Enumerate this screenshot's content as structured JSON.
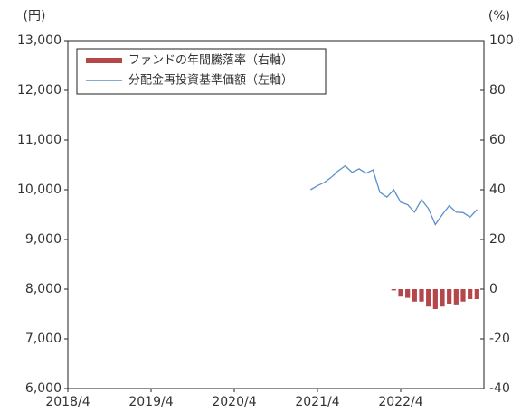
{
  "chart_data": {
    "type": "combo",
    "y_unit": "(円)",
    "y2_unit": "(%)",
    "x": [
      "2021/3",
      "2021/4",
      "2021/5",
      "2021/6",
      "2021/7",
      "2021/8",
      "2021/9",
      "2021/10",
      "2021/11",
      "2021/12",
      "2022/1",
      "2022/2",
      "2022/3",
      "2022/4",
      "2022/5",
      "2022/6",
      "2022/7",
      "2022/8",
      "2022/9",
      "2022/10",
      "2022/11",
      "2022/12",
      "2023/1",
      "2023/2",
      "2023/3"
    ],
    "xlim": [
      "2018/4",
      "2023/4"
    ],
    "xticks": [
      "2018/4",
      "2019/4",
      "2020/4",
      "2021/4",
      "2022/4"
    ],
    "ylim": [
      6000,
      13000
    ],
    "yticks": [
      {
        "value": 6000,
        "label": "6,000"
      },
      {
        "value": 7000,
        "label": "7,000"
      },
      {
        "value": 8000,
        "label": "8,000"
      },
      {
        "value": 9000,
        "label": "9,000"
      },
      {
        "value": 10000,
        "label": "10,000"
      },
      {
        "value": 11000,
        "label": "11,000"
      },
      {
        "value": 12000,
        "label": "12,000"
      },
      {
        "value": 13000,
        "label": "13,000"
      }
    ],
    "y2lim": [
      -40,
      100
    ],
    "y2ticks": [
      -40,
      -20,
      0,
      20,
      40,
      60,
      80,
      100
    ],
    "series": [
      {
        "name": "ファンドの年間騰落率（右軸）",
        "type": "bar",
        "axis": "y2",
        "color": "#b5474b",
        "values": [
          null,
          null,
          null,
          null,
          null,
          null,
          null,
          null,
          null,
          null,
          null,
          null,
          -0.5,
          -3,
          -3.5,
          -5,
          -5,
          -7,
          -8,
          -7,
          -6,
          -6.5,
          -5,
          -4,
          -4
        ]
      },
      {
        "name": "分配金再投資基準価額（左軸）",
        "type": "line",
        "color": "#5b8fc9",
        "values": [
          10000,
          10080,
          10150,
          10250,
          10380,
          10480,
          10350,
          10420,
          10330,
          10400,
          9950,
          9850,
          10000,
          9750,
          9700,
          9550,
          9800,
          9620,
          9300,
          9500,
          9680,
          9550,
          9540,
          9450,
          9600
        ]
      }
    ]
  }
}
